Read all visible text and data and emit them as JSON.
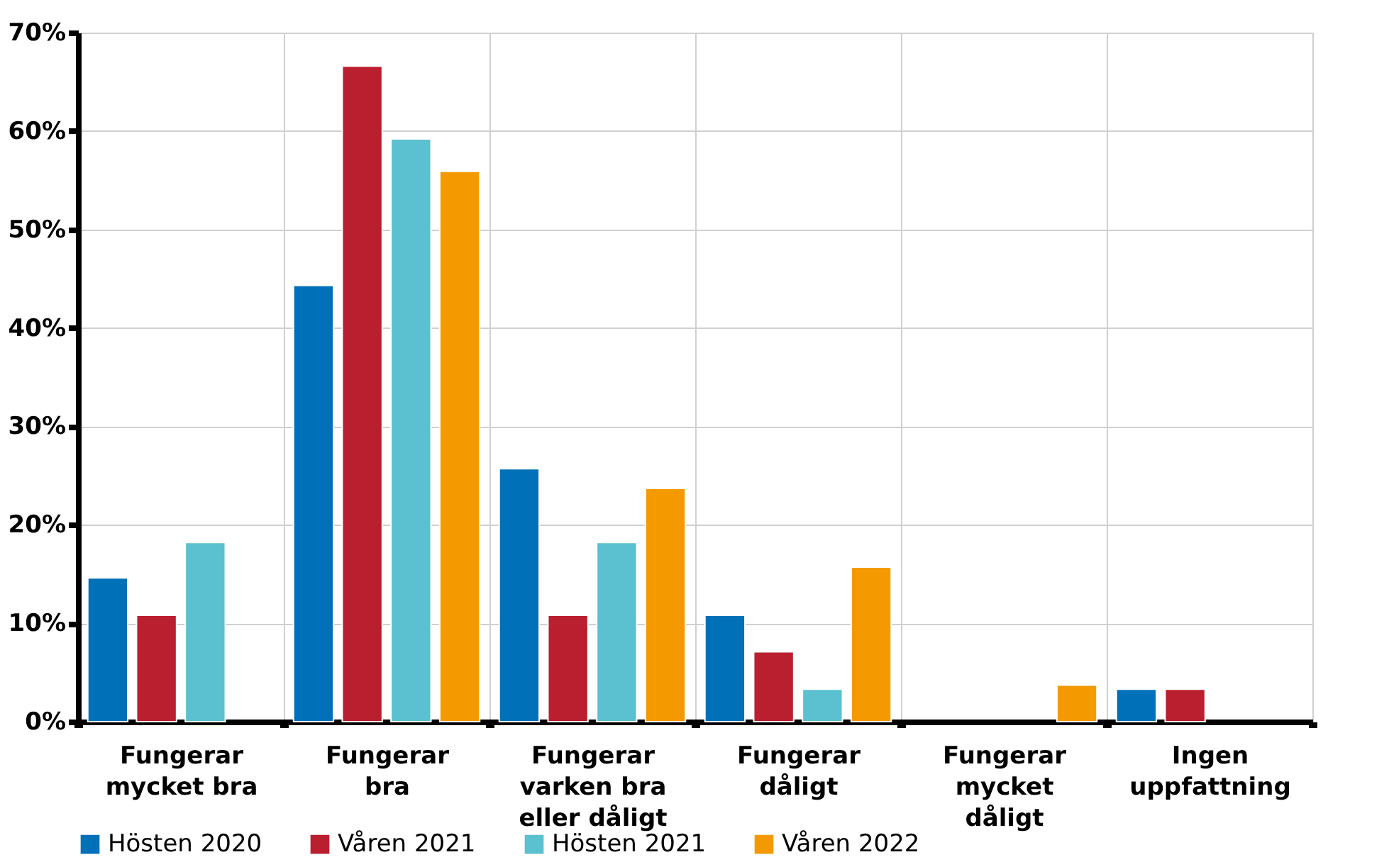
{
  "chart_data": {
    "type": "bar",
    "categories": [
      "Fungerar\nmycket bra",
      "Fungerar\nbra",
      "Fungerar\nvarken bra\neller dåligt",
      "Fungerar\ndåligt",
      "Fungerar\nmycket\ndåligt",
      "Ingen\nuppfattning"
    ],
    "series": [
      {
        "name": "Hösten 2020",
        "color": "#0070b8",
        "values": [
          14.6,
          44.3,
          25.7,
          10.8,
          null,
          3.3
        ]
      },
      {
        "name": "Våren 2021",
        "color": "#b91f2e",
        "values": [
          10.8,
          66.6,
          10.8,
          7.1,
          null,
          3.3
        ]
      },
      {
        "name": "Hösten 2021",
        "color": "#5bc0cf",
        "values": [
          18.2,
          59.2,
          18.2,
          3.3,
          null,
          null
        ]
      },
      {
        "name": "Våren 2022",
        "color": "#f49a00",
        "values": [
          null,
          55.9,
          23.7,
          15.7,
          3.7,
          null
        ]
      }
    ],
    "ylim": [
      0,
      70
    ],
    "yticks": [
      {
        "value": 0,
        "label": "0%"
      },
      {
        "value": 10,
        "label": "10%"
      },
      {
        "value": 20,
        "label": "20%"
      },
      {
        "value": 30,
        "label": "30%"
      },
      {
        "value": 40,
        "label": "40%"
      },
      {
        "value": 50,
        "label": "50%"
      },
      {
        "value": 60,
        "label": "60%"
      },
      {
        "value": 70,
        "label": "70%"
      }
    ],
    "grid": true,
    "legend": "bottom"
  }
}
